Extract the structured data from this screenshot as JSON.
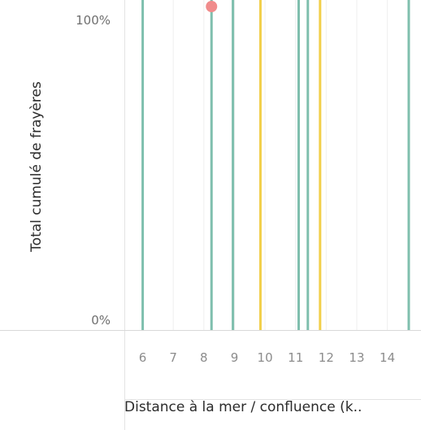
{
  "chart_data": {
    "type": "line",
    "ylabel": "Total cumulé de frayères",
    "xlabel": "Distance à la mer / confluence (k..",
    "x_ticks": [
      "6",
      "7",
      "8",
      "9",
      "10",
      "11",
      "12",
      "13",
      "14"
    ],
    "y_ticks": [
      "0%",
      "100%"
    ],
    "xlim": [
      5.4,
      15.1
    ],
    "ylim": [
      0,
      1
    ],
    "grid": true,
    "colors": {
      "teal": "#7fbfae",
      "yellow": "#f2cf4a",
      "marker": "#f08c8c"
    },
    "series": [
      {
        "x": 6.0,
        "color": "teal"
      },
      {
        "x": 8.25,
        "color": "teal"
      },
      {
        "x": 8.95,
        "color": "teal"
      },
      {
        "x": 9.85,
        "color": "yellow"
      },
      {
        "x": 11.1,
        "color": "teal"
      },
      {
        "x": 11.4,
        "color": "teal"
      },
      {
        "x": 11.8,
        "color": "yellow"
      },
      {
        "x": 14.7,
        "color": "teal"
      }
    ],
    "markers": [
      {
        "x": 8.25,
        "y": 1.0,
        "color": "marker"
      }
    ]
  }
}
